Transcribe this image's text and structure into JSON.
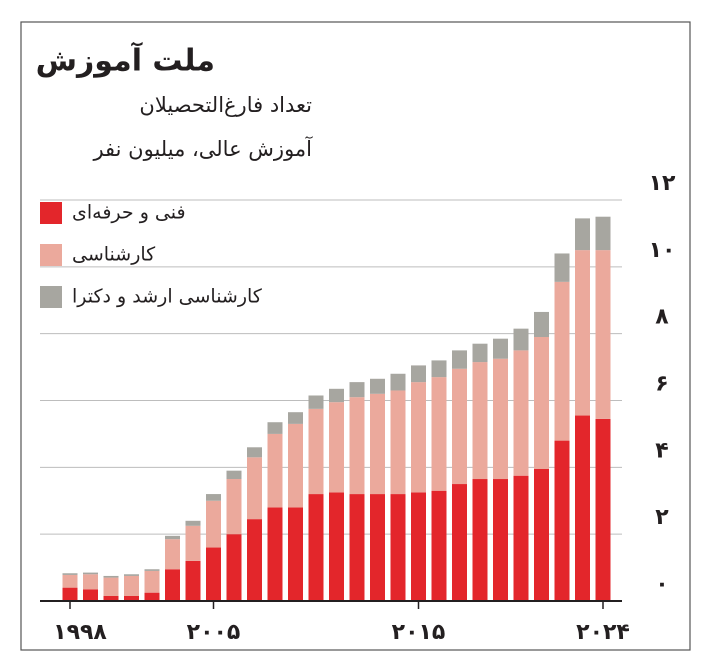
{
  "chart_data": {
    "type": "stacked_bar",
    "title": "ملت آموزش",
    "subtitle": [
      "تعداد فارغ‌التحصیلان",
      "آموزش عالی، میلیون نفر"
    ],
    "categories": [
      "۱۹۹۸",
      null,
      null,
      null,
      null,
      null,
      null,
      "۲۰۰۵",
      null,
      null,
      null,
      null,
      null,
      null,
      null,
      null,
      null,
      "۲۰۱۵",
      null,
      null,
      null,
      null,
      null,
      null,
      null,
      null,
      "۲۰۲۴"
    ],
    "series": [
      {
        "name": "فنی و حرفه‌ای",
        "color": "#e3262b",
        "values": [
          0.4,
          0.35,
          0.15,
          0.15,
          0.25,
          0.95,
          1.2,
          1.6,
          2.0,
          2.45,
          2.8,
          2.8,
          3.2,
          3.25,
          3.2,
          3.2,
          3.2,
          3.25,
          3.3,
          3.5,
          3.65,
          3.65,
          3.75,
          3.95,
          4.8,
          5.55,
          5.45
        ]
      },
      {
        "name": "کارشناسی",
        "color": "#eba99c",
        "values": [
          0.38,
          0.45,
          0.55,
          0.6,
          0.65,
          0.9,
          1.05,
          1.4,
          1.65,
          1.85,
          2.2,
          2.5,
          2.55,
          2.7,
          2.9,
          3.0,
          3.1,
          3.3,
          3.4,
          3.45,
          3.5,
          3.6,
          3.75,
          3.95,
          4.75,
          4.95,
          5.05
        ]
      },
      {
        "name": "کارشناسی ارشد و دکترا",
        "color": "#a7a6a0",
        "values": [
          0.05,
          0.05,
          0.05,
          0.05,
          0.05,
          0.1,
          0.15,
          0.2,
          0.25,
          0.3,
          0.35,
          0.35,
          0.4,
          0.4,
          0.45,
          0.45,
          0.5,
          0.5,
          0.5,
          0.55,
          0.55,
          0.6,
          0.65,
          0.75,
          0.85,
          0.95,
          1.0
        ]
      }
    ],
    "ylim": [
      0,
      12
    ],
    "yticks": [
      {
        "value": 0,
        "label": "۰"
      },
      {
        "value": 2,
        "label": "۲"
      },
      {
        "value": 4,
        "label": "۴"
      },
      {
        "value": 6,
        "label": "۶"
      },
      {
        "value": 8,
        "label": "۸"
      },
      {
        "value": 10,
        "label": "۱۰"
      },
      {
        "value": 12,
        "label": "۱۲"
      }
    ],
    "grid": true
  }
}
